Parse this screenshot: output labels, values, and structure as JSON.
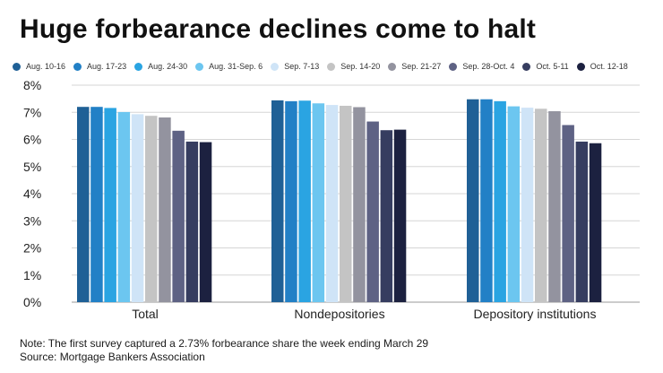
{
  "chart_data": {
    "type": "bar",
    "title": "Huge forbearance declines come to halt",
    "xlabel": "",
    "ylabel": "",
    "ylim": [
      0,
      8
    ],
    "yticks": [
      "0%",
      "1%",
      "2%",
      "3%",
      "4%",
      "5%",
      "6%",
      "7%",
      "8%"
    ],
    "grid": true,
    "legend_position": "top",
    "categories": [
      "Total",
      "Nondepositories",
      "Depository institutions"
    ],
    "series": [
      {
        "name": "Aug. 10-16",
        "color": "#1f6096",
        "values": [
          7.2,
          7.44,
          7.48
        ]
      },
      {
        "name": "Aug. 17-23",
        "color": "#2280c6",
        "values": [
          7.2,
          7.41,
          7.48
        ]
      },
      {
        "name": "Aug. 24-30",
        "color": "#2aa4e2",
        "values": [
          7.16,
          7.43,
          7.41
        ]
      },
      {
        "name": "Aug. 31-Sep. 6",
        "color": "#6cc6f0",
        "values": [
          7.01,
          7.33,
          7.22
        ]
      },
      {
        "name": "Sep. 7-13",
        "color": "#cfe4f7",
        "values": [
          6.93,
          7.27,
          7.17
        ]
      },
      {
        "name": "Sep. 14-20",
        "color": "#c4c4c4",
        "values": [
          6.87,
          7.24,
          7.13
        ]
      },
      {
        "name": "Sep. 21-27",
        "color": "#93939f",
        "values": [
          6.81,
          7.19,
          7.04
        ]
      },
      {
        "name": "Sep. 28-Oct. 4",
        "color": "#5e6284",
        "values": [
          6.32,
          6.66,
          6.53
        ]
      },
      {
        "name": "Oct. 5-11",
        "color": "#363d60",
        "values": [
          5.92,
          6.34,
          5.92
        ]
      },
      {
        "name": "Oct. 12-18",
        "color": "#1c2140",
        "values": [
          5.9,
          6.36,
          5.86
        ]
      }
    ]
  },
  "notes": {
    "note": "Note: The first survey captured a 2.73% forbearance share the week ending March 29",
    "source": "Source: Mortgage Bankers Association"
  }
}
